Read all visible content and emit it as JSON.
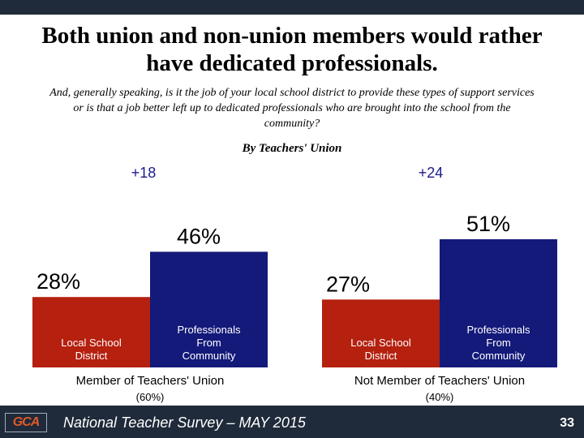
{
  "title": "Both union and non-union members would rather have dedicated professionals.",
  "subtitle": "And, generally speaking, is it the job of your local school district to provide these types of support services or is that a job better left up to dedicated professionals who are brought into the school from the community?",
  "footer": {
    "logo_text": "GCA",
    "survey_label": "National Teacher Survey – MAY 2015",
    "page_number": "33"
  },
  "colors": {
    "local_school_district": "#b5200f",
    "professionals_from_community": "#141a7a",
    "differential_text": "#1a1a8c",
    "bar_bar_border": "#1f2a3a"
  },
  "chart_data": {
    "type": "bar",
    "title": "By Teachers' Union",
    "groups": [
      {
        "label": "Member of Teachers' Union",
        "share": "(60%)",
        "differential": "+18",
        "bars": [
          {
            "category": "Local School District",
            "value": 28,
            "value_label": "28%"
          },
          {
            "category": "Professionals From Community",
            "value": 46,
            "value_label": "46%"
          }
        ]
      },
      {
        "label": "Not Member of Teachers' Union",
        "share": "(40%)",
        "differential": "+24",
        "bars": [
          {
            "category": "Local School District",
            "value": 27,
            "value_label": "27%"
          },
          {
            "category": "Professionals From Community",
            "value": 51,
            "value_label": "51%"
          }
        ]
      }
    ],
    "ylim": [
      0,
      100
    ],
    "grid": false,
    "legend": "none"
  }
}
